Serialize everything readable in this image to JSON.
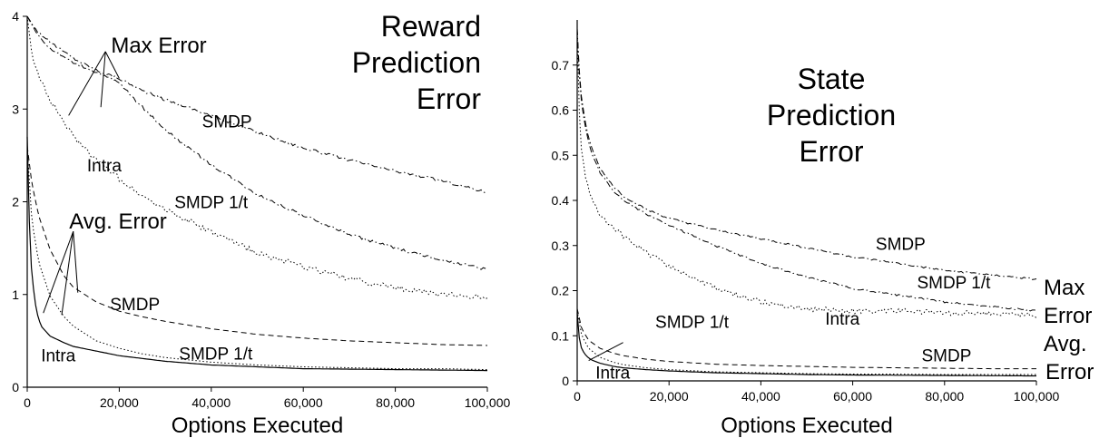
{
  "chart_data": [
    {
      "type": "line",
      "title": [
        "Reward",
        "Prediction",
        "Error"
      ],
      "xlabel": "Options Executed",
      "ylabel": "",
      "xlim": [
        0,
        100000
      ],
      "ylim": [
        0,
        4
      ],
      "xticks": [
        0,
        20000,
        40000,
        60000,
        80000,
        100000
      ],
      "xtick_labels": [
        "0",
        "20,000",
        "40,000",
        "60,000",
        "80,000",
        "100,000"
      ],
      "yticks": [
        0,
        1,
        2,
        3,
        4
      ],
      "ytick_labels": [
        "0",
        "1",
        "2",
        "3",
        "4"
      ],
      "grid": false,
      "group_labels": {
        "max": "Max Error",
        "avg": "Avg. Error"
      },
      "series": [
        {
          "name": "SMDP",
          "group": "max",
          "style": "dashdot",
          "noise": 0.015,
          "x": [
            0,
            2000,
            5000,
            10000,
            15000,
            20000,
            25000,
            30000,
            35000,
            40000,
            50000,
            60000,
            70000,
            80000,
            90000,
            100000
          ],
          "y": [
            4.0,
            3.85,
            3.72,
            3.55,
            3.42,
            3.33,
            3.2,
            3.1,
            3.02,
            2.93,
            2.75,
            2.58,
            2.45,
            2.33,
            2.23,
            2.1
          ]
        },
        {
          "name": "SMDP 1/t",
          "group": "max",
          "style": "dashdot",
          "noise": 0.015,
          "x": [
            0,
            2000,
            5000,
            10000,
            15000,
            20000,
            25000,
            30000,
            35000,
            40000,
            50000,
            60000,
            70000,
            80000,
            90000,
            100000
          ],
          "y": [
            4.0,
            3.82,
            3.65,
            3.5,
            3.4,
            3.28,
            3.02,
            2.78,
            2.58,
            2.4,
            2.08,
            1.85,
            1.65,
            1.5,
            1.37,
            1.27
          ]
        },
        {
          "name": "Intra",
          "group": "max",
          "style": "dotted",
          "noise": 0.03,
          "x": [
            0,
            1000,
            2500,
            5000,
            8000,
            10000,
            15000,
            20000,
            25000,
            30000,
            40000,
            50000,
            60000,
            70000,
            80000,
            90000,
            100000
          ],
          "y": [
            4.0,
            3.6,
            3.35,
            3.1,
            2.85,
            2.7,
            2.45,
            2.25,
            2.07,
            1.92,
            1.67,
            1.45,
            1.3,
            1.17,
            1.07,
            1.0,
            0.97
          ]
        },
        {
          "name": "SMDP",
          "group": "avg",
          "style": "dashed",
          "noise": 0,
          "x": [
            0,
            1000,
            2500,
            5000,
            8000,
            10000,
            15000,
            20000,
            25000,
            30000,
            40000,
            50000,
            60000,
            70000,
            80000,
            90000,
            100000
          ],
          "y": [
            2.6,
            2.2,
            1.85,
            1.48,
            1.2,
            1.08,
            0.92,
            0.82,
            0.76,
            0.71,
            0.63,
            0.57,
            0.53,
            0.5,
            0.48,
            0.46,
            0.45
          ]
        },
        {
          "name": "SMDP 1/t",
          "group": "avg",
          "style": "dotted",
          "noise": 0,
          "x": [
            0,
            1000,
            2500,
            5000,
            8000,
            10000,
            15000,
            20000,
            25000,
            30000,
            40000,
            50000,
            60000,
            70000,
            80000,
            90000,
            100000
          ],
          "y": [
            2.6,
            1.8,
            1.35,
            0.98,
            0.76,
            0.66,
            0.5,
            0.42,
            0.36,
            0.32,
            0.27,
            0.24,
            0.22,
            0.21,
            0.2,
            0.2,
            0.19
          ]
        },
        {
          "name": "Intra",
          "group": "avg",
          "style": "solid",
          "noise": 0,
          "x": [
            0,
            500,
            1000,
            2000,
            3000,
            5000,
            8000,
            10000,
            15000,
            20000,
            30000,
            40000,
            50000,
            60000,
            80000,
            100000
          ],
          "y": [
            2.7,
            1.7,
            1.2,
            0.82,
            0.66,
            0.55,
            0.48,
            0.44,
            0.39,
            0.34,
            0.28,
            0.24,
            0.22,
            0.2,
            0.19,
            0.18
          ]
        }
      ],
      "labels": [
        {
          "text": "SMDP",
          "x": 38000,
          "y": 2.8
        },
        {
          "text": "SMDP 1/t",
          "x": 32000,
          "y": 1.93
        },
        {
          "text": "Intra",
          "x": 13000,
          "y": 2.33
        },
        {
          "text": "SMDP",
          "x": 18000,
          "y": 0.83
        },
        {
          "text": "SMDP 1/t",
          "x": 33000,
          "y": 0.3
        },
        {
          "text": "Intra",
          "x": 3000,
          "y": 0.28
        }
      ],
      "leaders": [
        {
          "group": "max",
          "from": [
            17000,
            3.62
          ],
          "to": [
            9000,
            2.93
          ]
        },
        {
          "group": "max",
          "from": [
            17000,
            3.62
          ],
          "to": [
            16000,
            3.02
          ]
        },
        {
          "group": "max",
          "from": [
            17000,
            3.62
          ],
          "to": [
            20000,
            3.33
          ]
        },
        {
          "group": "avg",
          "from": [
            10000,
            1.68
          ],
          "to": [
            3500,
            0.8
          ]
        },
        {
          "group": "avg",
          "from": [
            10000,
            1.68
          ],
          "to": [
            7500,
            0.78
          ]
        },
        {
          "group": "avg",
          "from": [
            10000,
            1.68
          ],
          "to": [
            11000,
            1.02
          ]
        }
      ]
    },
    {
      "type": "line",
      "title": [
        "State",
        "Prediction",
        "Error"
      ],
      "xlabel": "Options Executed",
      "ylabel": "",
      "xlim": [
        0,
        100000
      ],
      "ylim": [
        0,
        0.8
      ],
      "xticks": [
        0,
        20000,
        40000,
        60000,
        80000,
        100000
      ],
      "xtick_labels": [
        "0",
        "20,000",
        "40,000",
        "60,000",
        "80,000",
        "100,000"
      ],
      "yticks": [
        0,
        0.1,
        0.2,
        0.3,
        0.4,
        0.5,
        0.6,
        0.7
      ],
      "ytick_labels": [
        "0",
        "0.1",
        "0.2",
        "0.3",
        "0.4",
        "0.5",
        "0.6",
        "0.7"
      ],
      "grid": false,
      "group_labels": {
        "max": "Max Error",
        "avg": "Avg. Error"
      },
      "series": [
        {
          "name": "SMDP",
          "group": "max",
          "style": "dashdot",
          "noise": 0.002,
          "x": [
            0,
            500,
            1000,
            2000,
            3000,
            5000,
            8000,
            10000,
            15000,
            20000,
            30000,
            40000,
            50000,
            60000,
            70000,
            80000,
            90000,
            100000
          ],
          "y": [
            0.78,
            0.68,
            0.62,
            0.56,
            0.52,
            0.47,
            0.43,
            0.41,
            0.38,
            0.36,
            0.335,
            0.315,
            0.295,
            0.275,
            0.26,
            0.245,
            0.235,
            0.225
          ]
        },
        {
          "name": "SMDP 1/t",
          "group": "max",
          "style": "dashdot",
          "noise": 0.002,
          "x": [
            0,
            500,
            1000,
            2000,
            3000,
            5000,
            8000,
            10000,
            15000,
            20000,
            30000,
            40000,
            50000,
            60000,
            70000,
            80000,
            90000,
            100000
          ],
          "y": [
            0.78,
            0.67,
            0.61,
            0.55,
            0.51,
            0.46,
            0.42,
            0.4,
            0.37,
            0.345,
            0.3,
            0.26,
            0.23,
            0.205,
            0.19,
            0.175,
            0.165,
            0.155
          ]
        },
        {
          "name": "Intra",
          "group": "max",
          "style": "dotted",
          "noise": 0.006,
          "x": [
            0,
            500,
            1000,
            2000,
            3000,
            5000,
            8000,
            10000,
            15000,
            20000,
            25000,
            30000,
            40000,
            50000,
            60000,
            70000,
            80000,
            90000,
            100000
          ],
          "y": [
            0.78,
            0.58,
            0.5,
            0.44,
            0.41,
            0.37,
            0.34,
            0.32,
            0.285,
            0.255,
            0.23,
            0.205,
            0.175,
            0.16,
            0.155,
            0.155,
            0.15,
            0.15,
            0.145
          ]
        },
        {
          "name": "SMDP",
          "group": "avg",
          "style": "dashed",
          "noise": 0,
          "x": [
            0,
            1000,
            2500,
            5000,
            8000,
            10000,
            15000,
            20000,
            30000,
            40000,
            50000,
            60000,
            70000,
            80000,
            90000,
            100000
          ],
          "y": [
            0.16,
            0.115,
            0.09,
            0.072,
            0.061,
            0.056,
            0.048,
            0.043,
            0.037,
            0.034,
            0.032,
            0.03,
            0.029,
            0.028,
            0.027,
            0.027
          ]
        },
        {
          "name": "SMDP 1/t",
          "group": "avg",
          "style": "dotted",
          "noise": 0,
          "x": [
            0,
            1000,
            2500,
            5000,
            8000,
            10000,
            15000,
            20000,
            30000,
            40000,
            50000,
            60000,
            70000,
            80000,
            90000,
            100000
          ],
          "y": [
            0.155,
            0.1,
            0.072,
            0.052,
            0.041,
            0.036,
            0.029,
            0.025,
            0.02,
            0.018,
            0.016,
            0.015,
            0.015,
            0.014,
            0.014,
            0.014
          ]
        },
        {
          "name": "Intra",
          "group": "avg",
          "style": "solid",
          "noise": 0,
          "x": [
            0,
            500,
            1000,
            2000,
            3000,
            5000,
            8000,
            10000,
            15000,
            20000,
            30000,
            40000,
            50000,
            60000,
            80000,
            100000
          ],
          "y": [
            0.15,
            0.09,
            0.07,
            0.055,
            0.047,
            0.039,
            0.032,
            0.029,
            0.025,
            0.022,
            0.018,
            0.016,
            0.014,
            0.013,
            0.012,
            0.011
          ]
        }
      ],
      "labels": [
        {
          "text": "SMDP",
          "x": 65000,
          "y": 0.29
        },
        {
          "text": "SMDP 1/t",
          "x": 74000,
          "y": 0.205
        },
        {
          "text": "Intra",
          "x": 54000,
          "y": 0.125
        },
        {
          "text": "SMDP 1/t",
          "x": 17000,
          "y": 0.118
        },
        {
          "text": "SMDP",
          "x": 75000,
          "y": 0.043
        },
        {
          "text": "Intra",
          "x": 4000,
          "y": 0.005
        }
      ],
      "leaders": [
        {
          "group": "avg",
          "from": [
            10000,
            0.085
          ],
          "to": [
            2500,
            0.045
          ]
        }
      ]
    }
  ]
}
